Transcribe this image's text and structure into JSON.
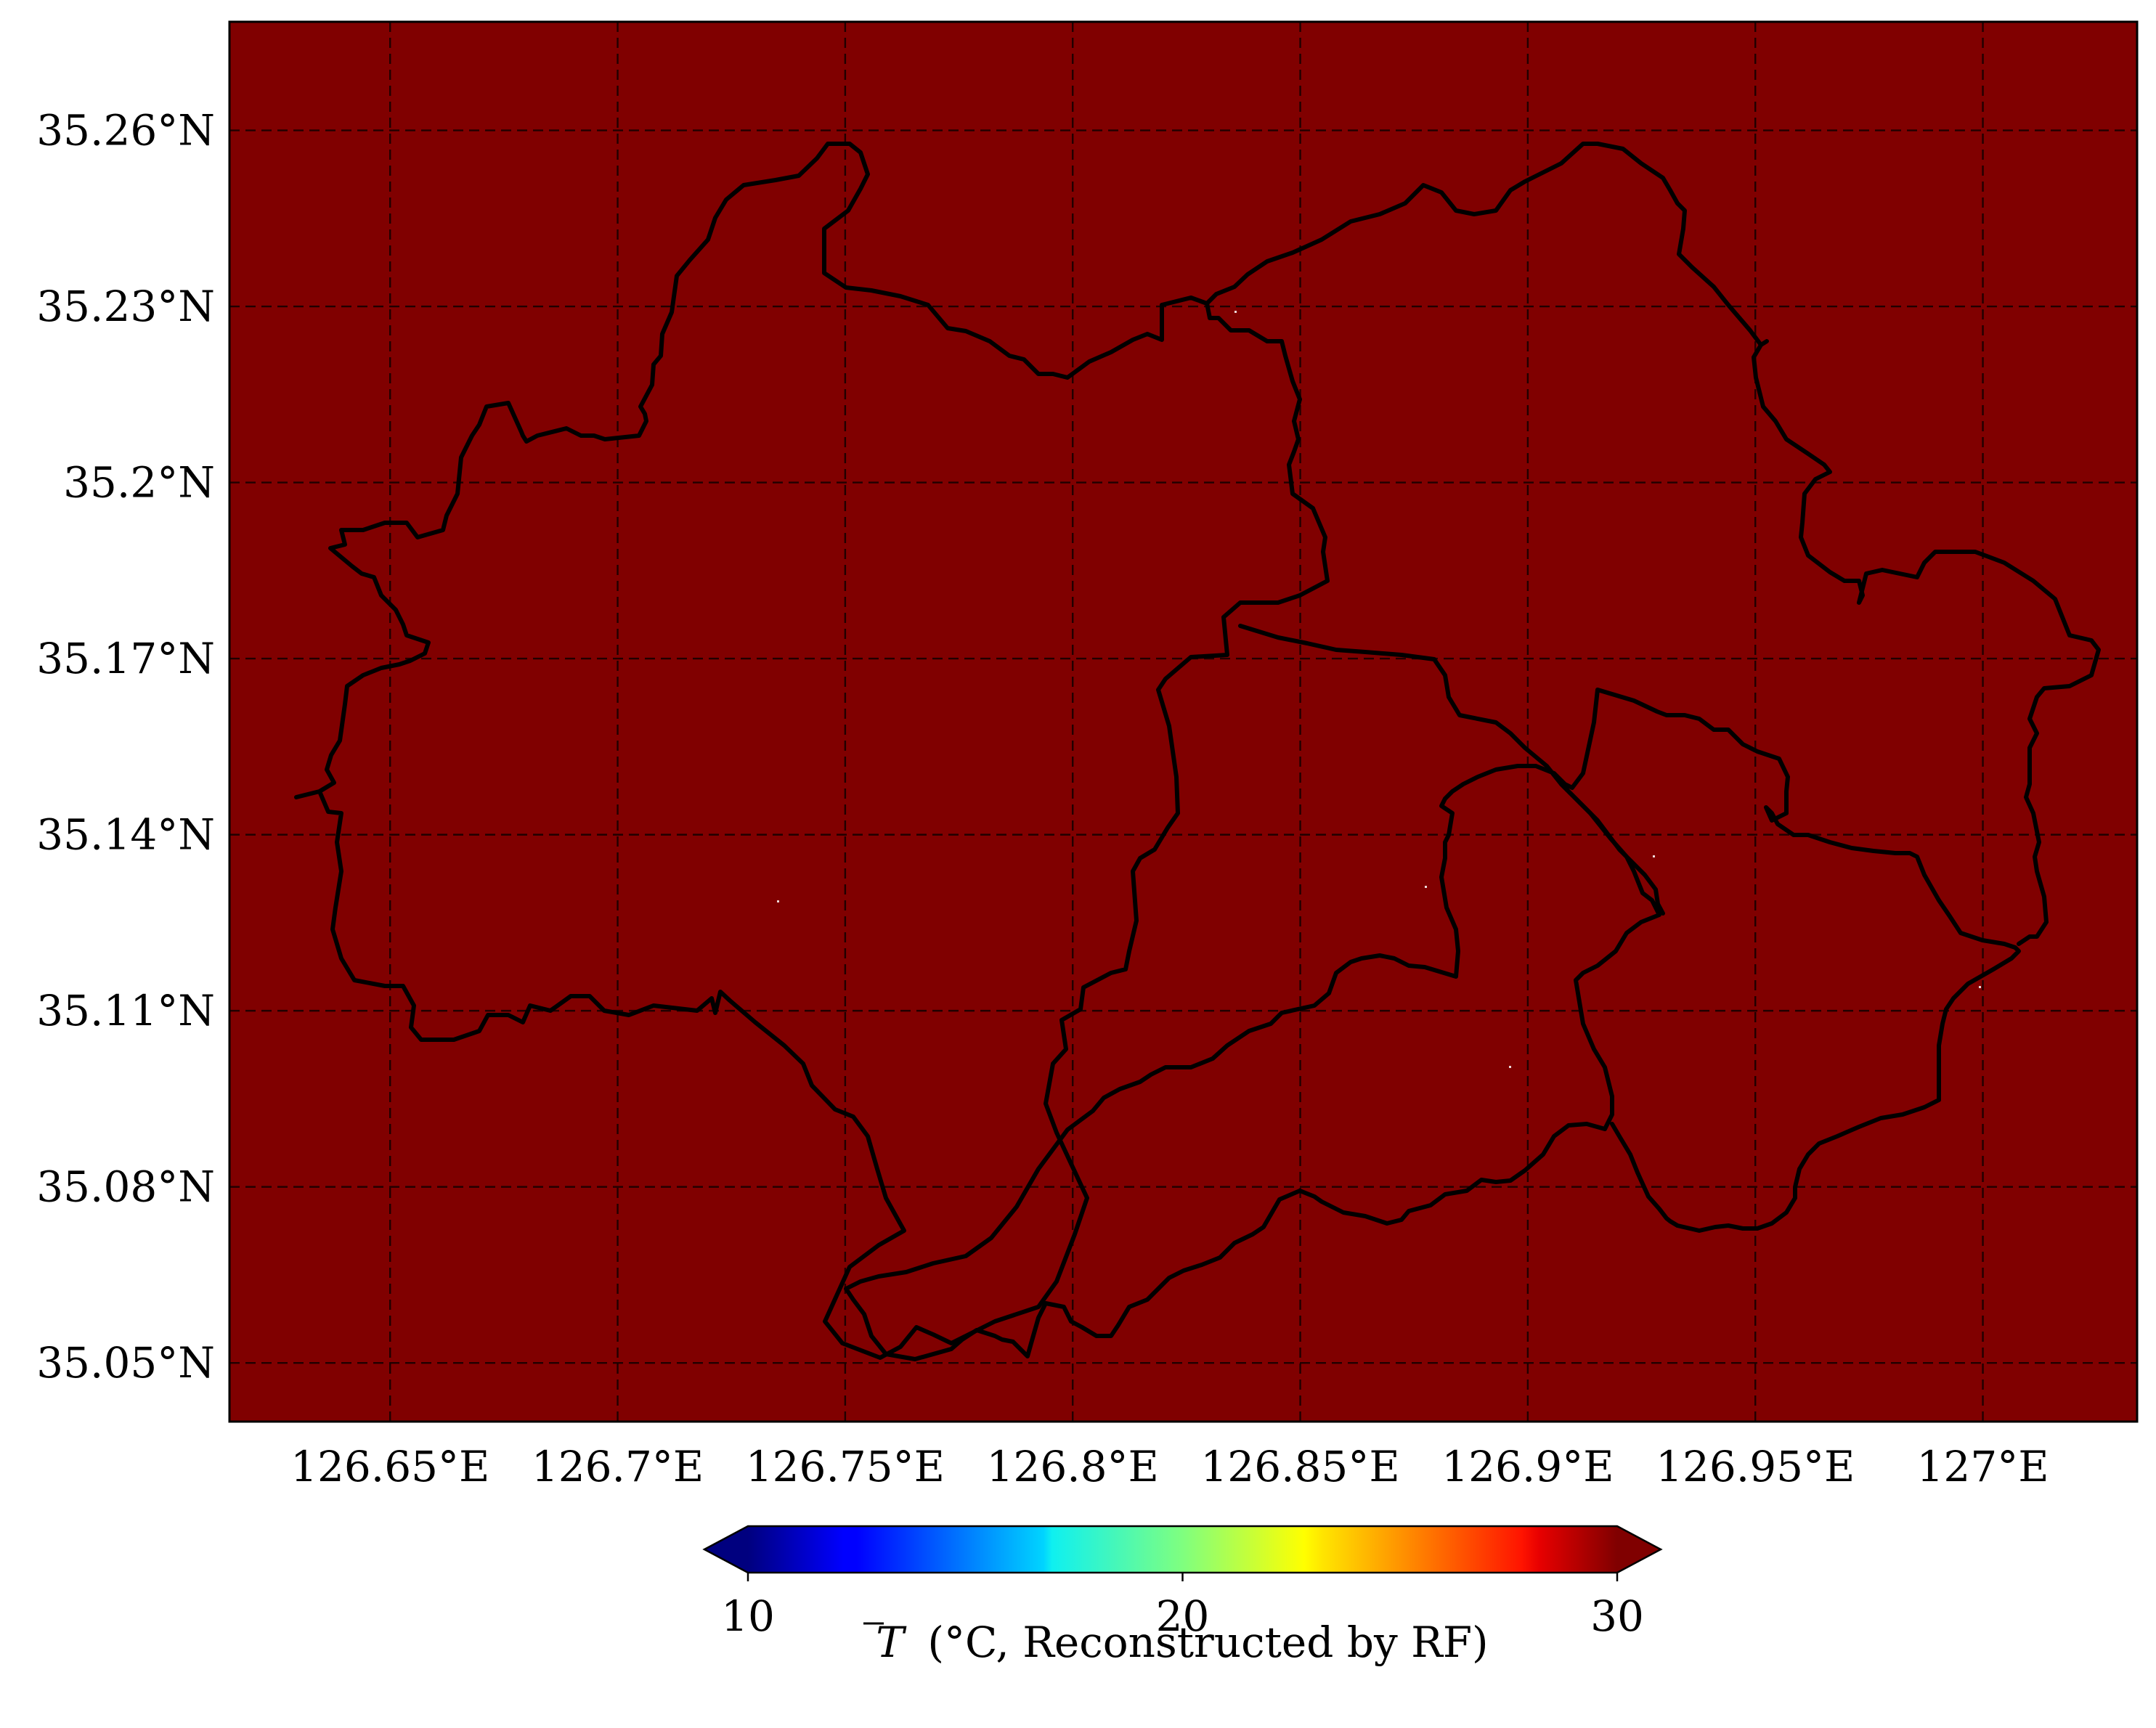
{
  "chart_data": {
    "type": "heatmap",
    "subtype": "geographic-map",
    "field_value": 30,
    "field_color": "#800000",
    "xlim": [
      126.6147,
      127.0339
    ],
    "ylim": [
      35.04,
      35.2785
    ],
    "x_ticks": [
      126.65,
      126.7,
      126.75,
      126.8,
      126.85,
      126.9,
      126.95,
      127.0
    ],
    "x_tick_labels": [
      "126.65°E",
      "126.7°E",
      "126.75°E",
      "126.8°E",
      "126.85°E",
      "126.9°E",
      "126.95°E",
      "127°E"
    ],
    "y_ticks": [
      35.05,
      35.08,
      35.11,
      35.14,
      35.17,
      35.2,
      35.23,
      35.26
    ],
    "y_tick_labels": [
      "35.05°N",
      "35.08°N",
      "35.11°N",
      "35.14°N",
      "35.17°N",
      "35.2°N",
      "35.23°N",
      "35.26°N"
    ],
    "grid": true,
    "colorbar": {
      "min": 10,
      "max": 30,
      "ticks": [
        10,
        20,
        30
      ],
      "tick_labels": [
        "10",
        "20",
        "30"
      ],
      "colormap": "jet",
      "extend": "both",
      "label_symbol": "T",
      "label_text": "(°C, Reconstructed by RF)"
    }
  }
}
